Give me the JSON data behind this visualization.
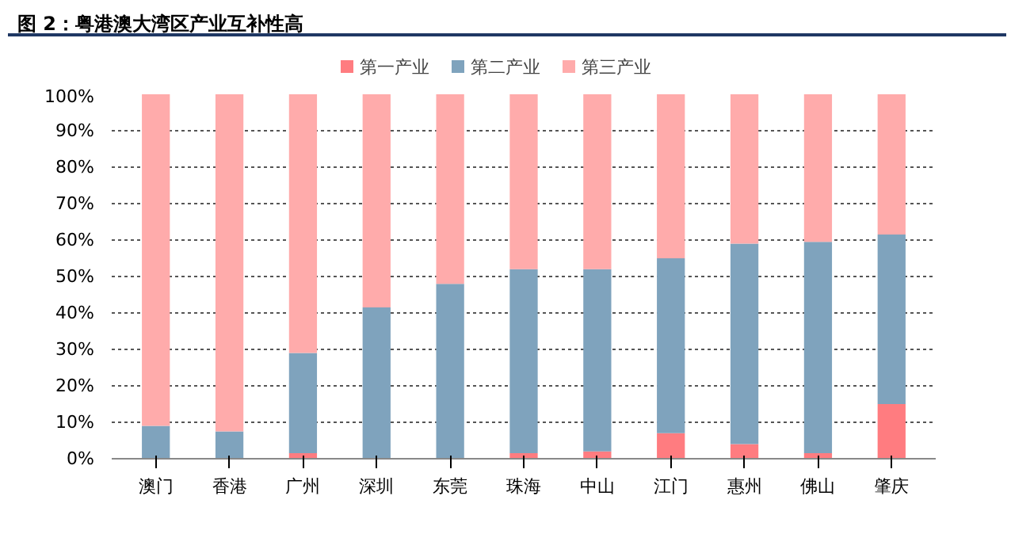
{
  "chart_data": {
    "type": "bar",
    "stacked": true,
    "title": "图 2：粤港澳大湾区产业互补性高",
    "categories": [
      "澳门",
      "香港",
      "广州",
      "深圳",
      "东莞",
      "珠海",
      "中山",
      "江门",
      "惠州",
      "佛山",
      "肇庆"
    ],
    "series": [
      {
        "name": "第一产业",
        "color": "#ff7c80",
        "values": [
          0,
          0,
          1.5,
          0,
          0,
          1.5,
          2,
          7,
          4,
          1.5,
          15
        ]
      },
      {
        "name": "第二产业",
        "color": "#7fa3bd",
        "values": [
          9,
          7.5,
          27.5,
          41.5,
          48,
          50.5,
          50,
          48,
          55,
          58,
          46.5
        ]
      },
      {
        "name": "第三产业",
        "color": "#ffabab",
        "values": [
          91,
          92.5,
          71,
          58.5,
          52,
          48,
          48,
          45,
          41,
          40.5,
          38.5
        ]
      }
    ],
    "ylim": [
      0,
      100
    ],
    "yticks": [
      {
        "value": 0,
        "label": "0%"
      },
      {
        "value": 10,
        "label": "10%"
      },
      {
        "value": 20,
        "label": "20%"
      },
      {
        "value": 30,
        "label": "30%"
      },
      {
        "value": 40,
        "label": "40%"
      },
      {
        "value": 50,
        "label": "50%"
      },
      {
        "value": 60,
        "label": "60%"
      },
      {
        "value": 70,
        "label": "70%"
      },
      {
        "value": 80,
        "label": "80%"
      },
      {
        "value": 90,
        "label": "90%"
      },
      {
        "value": 100,
        "label": "100%"
      }
    ],
    "grid": "y",
    "legend": "top"
  }
}
